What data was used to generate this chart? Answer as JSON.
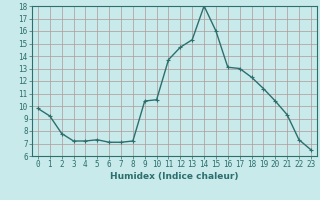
{
  "x": [
    0,
    1,
    2,
    3,
    4,
    5,
    6,
    7,
    8,
    9,
    10,
    11,
    12,
    13,
    14,
    15,
    16,
    17,
    18,
    19,
    20,
    21,
    22,
    23
  ],
  "y": [
    9.8,
    9.2,
    7.8,
    7.2,
    7.2,
    7.3,
    7.1,
    7.1,
    7.2,
    10.4,
    10.5,
    13.7,
    14.7,
    15.3,
    18.0,
    16.0,
    13.1,
    13.0,
    12.3,
    11.4,
    10.4,
    9.3,
    7.3,
    6.5
  ],
  "line_color": "#2d6e6e",
  "marker": "+",
  "marker_size": 3,
  "linewidth": 1.0,
  "xlabel": "Humidex (Indice chaleur)",
  "xlim": [
    -0.5,
    23.5
  ],
  "ylim": [
    6,
    18
  ],
  "yticks": [
    6,
    7,
    8,
    9,
    10,
    11,
    12,
    13,
    14,
    15,
    16,
    17,
    18
  ],
  "xticks": [
    0,
    1,
    2,
    3,
    4,
    5,
    6,
    7,
    8,
    9,
    10,
    11,
    12,
    13,
    14,
    15,
    16,
    17,
    18,
    19,
    20,
    21,
    22,
    23
  ],
  "bg_color": "#c8eaea",
  "grid_color": "#b09898",
  "line_axis_color": "#2d6e6e",
  "xlabel_fontsize": 6.5,
  "tick_fontsize": 5.5
}
